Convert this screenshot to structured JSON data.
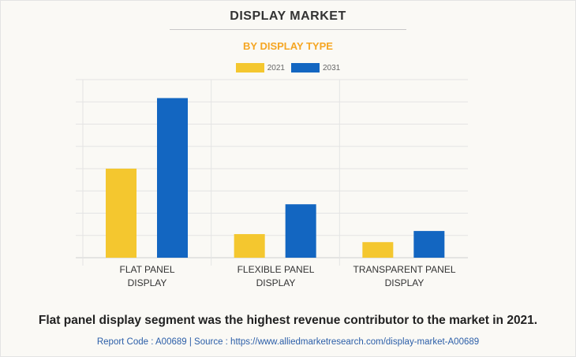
{
  "title": "DISPLAY MARKET",
  "subtitle": "BY DISPLAY TYPE",
  "caption": "Flat panel display segment was the highest revenue contributor to the market in 2021.",
  "source": "Report Code : A00689  |  Source : https://www.alliedmarketresearch.com/display-market-A00689",
  "chart_data": {
    "type": "bar",
    "categories": [
      "FLAT PANEL DISPLAY",
      "FLEXIBLE PANEL DISPLAY",
      "TRANSPARENT PANEL DISPLAY"
    ],
    "category_lines": [
      [
        "FLAT PANEL",
        "DISPLAY"
      ],
      [
        "FLEXIBLE PANEL",
        "DISPLAY"
      ],
      [
        "TRANSPARENT PANEL",
        "DISPLAY"
      ]
    ],
    "series": [
      {
        "name": "2021",
        "color": "#f4c72f",
        "values": [
          4.0,
          1.06,
          0.7
        ]
      },
      {
        "name": "2031",
        "color": "#1366c1",
        "values": [
          7.17,
          2.4,
          1.2
        ]
      }
    ],
    "ylim": [
      0,
      8
    ],
    "y_tick_labels_shown": false,
    "grid": true,
    "legend": "top-center"
  }
}
